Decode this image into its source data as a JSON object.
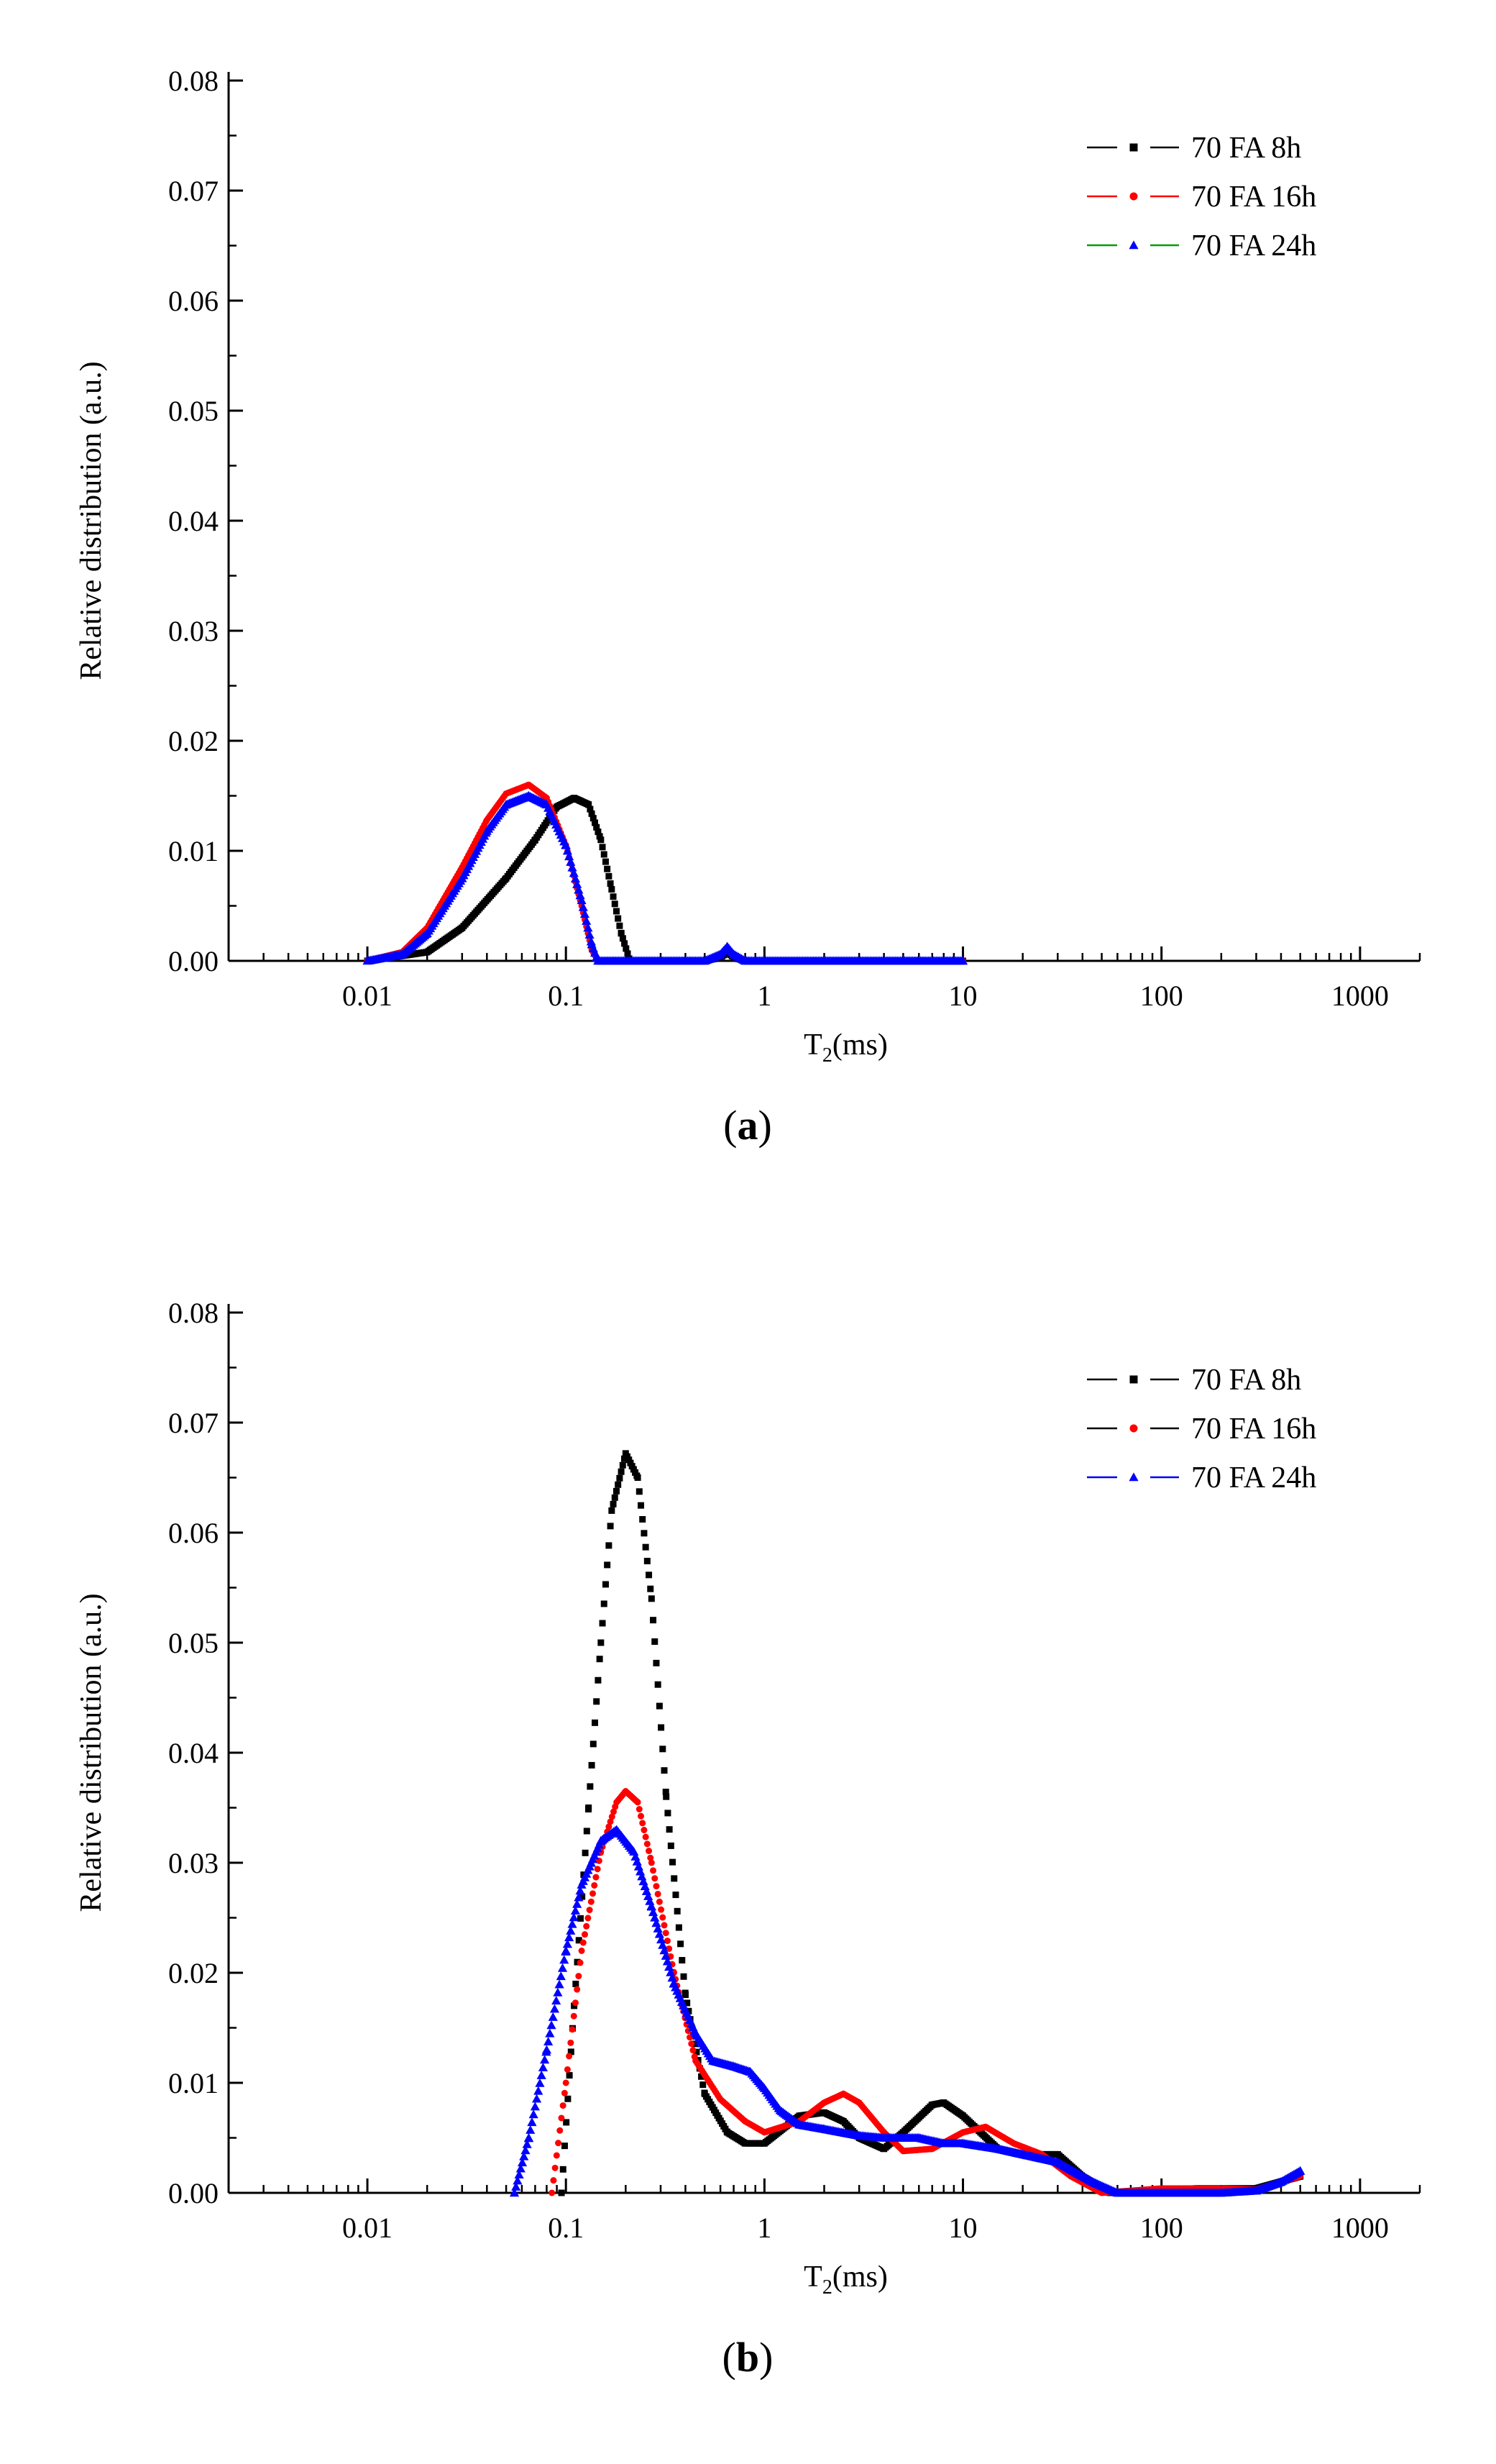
{
  "chart_data": [
    {
      "type": "line",
      "panel_label": "a",
      "xlabel_main": "T",
      "xlabel_sub": "2",
      "xlabel_unit": "(ms)",
      "ylabel": "Relative distribution (a.u.)",
      "xscale": "log",
      "xlim": [
        0.002,
        2000
      ],
      "ylim": [
        0,
        0.08
      ],
      "xticks": [
        {
          "value": 0.01,
          "label": "0.01"
        },
        {
          "value": 0.1,
          "label": "0.1"
        },
        {
          "value": 1,
          "label": "1"
        },
        {
          "value": 10,
          "label": "10"
        },
        {
          "value": 100,
          "label": "100"
        },
        {
          "value": 1000,
          "label": "1000"
        }
      ],
      "yticks": [
        {
          "value": 0,
          "label": "0.00"
        },
        {
          "value": 0.01,
          "label": "0.01"
        },
        {
          "value": 0.02,
          "label": "0.02"
        },
        {
          "value": 0.03,
          "label": "0.03"
        },
        {
          "value": 0.04,
          "label": "0.04"
        },
        {
          "value": 0.05,
          "label": "0.05"
        },
        {
          "value": 0.06,
          "label": "0.06"
        },
        {
          "value": 0.07,
          "label": "0.07"
        },
        {
          "value": 0.08,
          "label": "0.08"
        }
      ],
      "legend_position": "top-right",
      "series": [
        {
          "name": "70 FA 8h",
          "color": "#000000",
          "legend_line_color": "#000000",
          "marker": "square",
          "x": [
            0.01,
            0.02,
            0.03,
            0.05,
            0.07,
            0.09,
            0.11,
            0.13,
            0.15,
            0.17,
            0.19,
            0.21,
            0.3,
            0.5,
            0.6,
            0.65,
            0.7,
            0.8,
            1,
            2,
            5,
            10
          ],
          "y": [
            0,
            0.0008,
            0.003,
            0.0075,
            0.011,
            0.014,
            0.0148,
            0.0142,
            0.011,
            0.0065,
            0.0025,
            0,
            0,
            0,
            0.0003,
            0.0008,
            0.0003,
            0,
            0,
            0,
            0,
            0
          ]
        },
        {
          "name": "70 FA 16h",
          "color": "#ff0000",
          "legend_line_color": "#ff0000",
          "marker": "circle",
          "x": [
            0.01,
            0.015,
            0.02,
            0.03,
            0.04,
            0.05,
            0.065,
            0.08,
            0.1,
            0.12,
            0.135,
            0.145,
            0.2,
            0.5,
            0.6,
            0.65,
            0.7,
            0.8,
            1,
            2,
            5,
            10
          ],
          "y": [
            0,
            0.0008,
            0.003,
            0.0085,
            0.0128,
            0.0152,
            0.016,
            0.0148,
            0.0105,
            0.005,
            0.001,
            0,
            0,
            0,
            0.0005,
            0.0012,
            0.0005,
            0,
            0,
            0,
            0,
            0
          ]
        },
        {
          "name": "70 FA 24h",
          "color": "#0000ff",
          "legend_line_color": "#00a000",
          "marker": "triangle",
          "x": [
            0.01,
            0.015,
            0.02,
            0.03,
            0.04,
            0.05,
            0.065,
            0.08,
            0.1,
            0.12,
            0.135,
            0.145,
            0.2,
            0.5,
            0.6,
            0.65,
            0.7,
            0.8,
            1,
            2,
            5,
            10
          ],
          "y": [
            0,
            0.0006,
            0.0025,
            0.0075,
            0.0118,
            0.0142,
            0.015,
            0.0142,
            0.0105,
            0.0055,
            0.0015,
            0,
            0,
            0,
            0.0006,
            0.0013,
            0.0006,
            0,
            0,
            0,
            0,
            0
          ]
        }
      ]
    },
    {
      "type": "line",
      "panel_label": "b",
      "xlabel_main": "T",
      "xlabel_sub": "2",
      "xlabel_unit": "(ms)",
      "ylabel": "Relative distribution (a.u.)",
      "xscale": "log",
      "xlim": [
        0.002,
        2000
      ],
      "ylim": [
        0,
        0.08
      ],
      "xticks": [
        {
          "value": 0.01,
          "label": "0.01"
        },
        {
          "value": 0.1,
          "label": "0.1"
        },
        {
          "value": 1,
          "label": "1"
        },
        {
          "value": 10,
          "label": "10"
        },
        {
          "value": 100,
          "label": "100"
        },
        {
          "value": 1000,
          "label": "1000"
        }
      ],
      "yticks": [
        {
          "value": 0,
          "label": "0.00"
        },
        {
          "value": 0.01,
          "label": "0.01"
        },
        {
          "value": 0.02,
          "label": "0.02"
        },
        {
          "value": 0.03,
          "label": "0.03"
        },
        {
          "value": 0.04,
          "label": "0.04"
        },
        {
          "value": 0.05,
          "label": "0.05"
        },
        {
          "value": 0.06,
          "label": "0.06"
        },
        {
          "value": 0.07,
          "label": "0.07"
        },
        {
          "value": 0.08,
          "label": "0.08"
        }
      ],
      "legend_position": "top-right",
      "series": [
        {
          "name": "70 FA 8h",
          "color": "#000000",
          "legend_line_color": "#000000",
          "marker": "square",
          "x": [
            0.095,
            0.11,
            0.13,
            0.15,
            0.17,
            0.2,
            0.23,
            0.27,
            0.32,
            0.4,
            0.5,
            0.65,
            0.8,
            1,
            1.5,
            2,
            2.5,
            3,
            4,
            5,
            7,
            8,
            10,
            15,
            20,
            30,
            40,
            55,
            80,
            150,
            300,
            500
          ],
          "y": [
            0,
            0.017,
            0.035,
            0.05,
            0.062,
            0.0672,
            0.065,
            0.054,
            0.036,
            0.018,
            0.009,
            0.0055,
            0.0045,
            0.0045,
            0.007,
            0.0073,
            0.0065,
            0.005,
            0.004,
            0.0055,
            0.008,
            0.0082,
            0.007,
            0.004,
            0.0035,
            0.0035,
            0.0015,
            0,
            0.0002,
            0.0004,
            0.0004,
            0.0015
          ]
        },
        {
          "name": "70 FA 16h",
          "color": "#ff0000",
          "legend_line_color": "#000000",
          "marker": "circle",
          "x": [
            0.085,
            0.1,
            0.12,
            0.15,
            0.18,
            0.2,
            0.23,
            0.27,
            0.35,
            0.45,
            0.6,
            0.8,
            1,
            1.5,
            2,
            2.5,
            3,
            4,
            5,
            7,
            10,
            13,
            18,
            25,
            35,
            50,
            100,
            200,
            300,
            500
          ],
          "y": [
            0,
            0.01,
            0.022,
            0.031,
            0.0355,
            0.0365,
            0.0355,
            0.03,
            0.02,
            0.012,
            0.0085,
            0.0065,
            0.0055,
            0.0065,
            0.0082,
            0.009,
            0.0082,
            0.0055,
            0.0038,
            0.004,
            0.0055,
            0.006,
            0.0045,
            0.0035,
            0.0015,
            0,
            0.0004,
            0.0004,
            0.0003,
            0.0015
          ]
        },
        {
          "name": "70 FA 24h",
          "color": "#0000ff",
          "legend_line_color": "#0000ff",
          "marker": "triangle",
          "x": [
            0.055,
            0.065,
            0.08,
            0.1,
            0.12,
            0.15,
            0.18,
            0.22,
            0.27,
            0.35,
            0.45,
            0.55,
            0.7,
            0.85,
            1,
            1.2,
            1.5,
            2,
            3,
            4,
            6,
            8,
            10,
            15,
            20,
            30,
            45,
            60,
            100,
            200,
            300,
            400,
            500
          ],
          "y": [
            0,
            0.005,
            0.013,
            0.022,
            0.028,
            0.032,
            0.033,
            0.031,
            0.026,
            0.019,
            0.0145,
            0.012,
            0.0115,
            0.011,
            0.0095,
            0.0075,
            0.0062,
            0.0058,
            0.0052,
            0.005,
            0.005,
            0.0045,
            0.0045,
            0.004,
            0.0035,
            0.0028,
            0.001,
            0,
            0,
            0,
            0.0002,
            0.001,
            0.002
          ]
        }
      ]
    }
  ]
}
